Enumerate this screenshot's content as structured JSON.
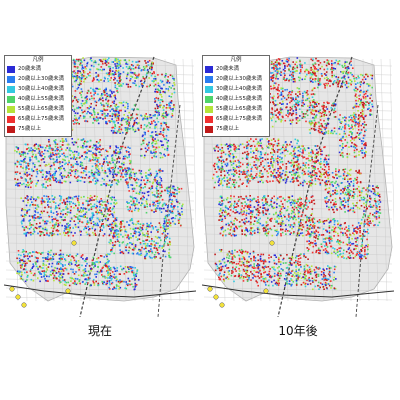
{
  "legend": {
    "title": "凡例",
    "items": [
      {
        "label": "20歳未満",
        "color": "#2b2bd6"
      },
      {
        "label": "20歳以上30歳未満",
        "color": "#2a7df0"
      },
      {
        "label": "30歳以上40歳未満",
        "color": "#33c9e0"
      },
      {
        "label": "40歳以上55歳未満",
        "color": "#4fd46a"
      },
      {
        "label": "55歳以上65歳未満",
        "color": "#b5e33a"
      },
      {
        "label": "65歳以上75歳未満",
        "color": "#f03030"
      },
      {
        "label": "75歳以上",
        "color": "#c01a1a"
      }
    ]
  },
  "maps": [
    {
      "caption": "現在",
      "distribution": [
        0.16,
        0.14,
        0.14,
        0.18,
        0.12,
        0.14,
        0.12
      ]
    },
    {
      "caption": "10年後",
      "distribution": [
        0.1,
        0.08,
        0.1,
        0.14,
        0.14,
        0.24,
        0.2
      ]
    }
  ]
}
